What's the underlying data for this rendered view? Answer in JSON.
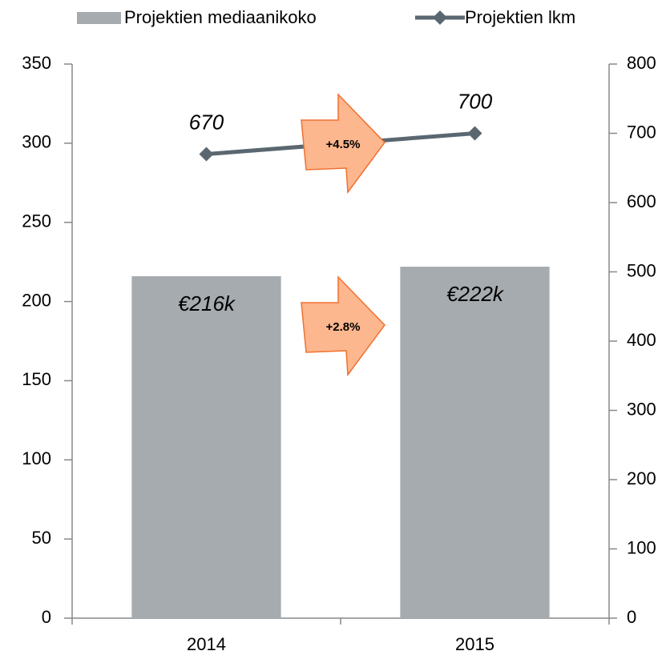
{
  "chart_data": {
    "type": "bar-line",
    "categories": [
      "2014",
      "2015"
    ],
    "series": [
      {
        "name": "Projektien mediaanikoko",
        "type": "bar",
        "color": "#a5abaf",
        "values": [
          216,
          222
        ],
        "value_labels": [
          "€216k",
          "€222k"
        ]
      },
      {
        "name": "Projektien lkm",
        "type": "line",
        "axis": "y2",
        "color": "#5b6770",
        "values": [
          670,
          700
        ],
        "value_labels": [
          "670",
          "700"
        ]
      }
    ],
    "ylim": [
      0,
      350
    ],
    "yticks": [
      0,
      50,
      100,
      150,
      200,
      250,
      300,
      350
    ],
    "y2lim": [
      0,
      800
    ],
    "y2ticks": [
      0,
      100,
      200,
      300,
      400,
      500,
      600,
      700,
      800
    ],
    "legend": "top",
    "annotations": [
      {
        "text": "+4.5%"
      },
      {
        "text": "+2.8%"
      }
    ]
  }
}
